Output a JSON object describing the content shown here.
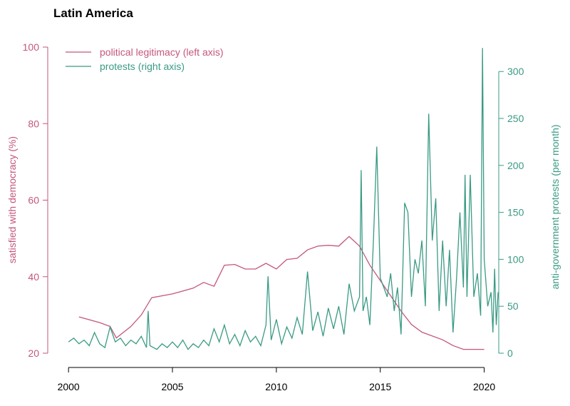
{
  "chart_data": {
    "type": "line",
    "title": "Latin America",
    "y_label": "satisfied with democracy (%)",
    "y2_label": "anti-government protests (per month)",
    "xlim": [
      1999,
      2020.7
    ],
    "xticks": [
      2000,
      2005,
      2010,
      2015,
      2020
    ],
    "ylim": [
      20,
      100
    ],
    "yticks": [
      20,
      40,
      60,
      80,
      100
    ],
    "y2lim": [
      0,
      326
    ],
    "y2ticks": [
      0,
      50,
      100,
      150,
      200,
      250,
      300
    ],
    "legend": "top-left",
    "series": [
      {
        "name": "political legitimacy (left axis)",
        "color": "#c4577a",
        "x": [
          2000.5,
          2001.5,
          2002,
          2002.3,
          2003,
          2003.5,
          2004,
          2005,
          2006,
          2006.5,
          2007,
          2007.5,
          2008,
          2008.5,
          2009,
          2009.5,
          2010,
          2010.5,
          2011,
          2011.5,
          2012,
          2012.5,
          2013,
          2013.5,
          2014,
          2014.5,
          2015,
          2015.5,
          2016,
          2016.5,
          2017,
          2018,
          2018.5,
          2019,
          2019.5,
          2020
        ],
        "values": [
          29.5,
          28,
          27,
          24,
          27,
          30,
          34.5,
          35.5,
          37,
          38.5,
          37.5,
          43,
          43.2,
          42,
          42,
          43.5,
          42,
          44.5,
          44.8,
          47,
          48,
          48.2,
          48,
          50.5,
          48,
          43,
          39,
          35,
          31,
          27.5,
          25.5,
          23.5,
          22,
          21,
          21,
          21
        ]
      },
      {
        "name": "protests (right axis)",
        "color": "#3a9a84",
        "axis": "y2",
        "x": [
          2000.0,
          2000.25,
          2000.5,
          2000.75,
          2001.0,
          2001.25,
          2001.5,
          2001.75,
          2002.0,
          2002.25,
          2002.5,
          2002.75,
          2003.0,
          2003.25,
          2003.5,
          2003.75,
          2003.83,
          2003.92,
          2004.25,
          2004.5,
          2004.75,
          2005.0,
          2005.25,
          2005.5,
          2005.75,
          2006.0,
          2006.25,
          2006.5,
          2006.75,
          2007.0,
          2007.25,
          2007.5,
          2007.75,
          2008.0,
          2008.25,
          2008.5,
          2008.75,
          2009.0,
          2009.25,
          2009.5,
          2009.6,
          2009.75,
          2010.0,
          2010.25,
          2010.5,
          2010.75,
          2011.0,
          2011.25,
          2011.5,
          2011.75,
          2012.0,
          2012.25,
          2012.5,
          2012.75,
          2013.0,
          2013.25,
          2013.5,
          2013.75,
          2014.0,
          2014.08,
          2014.17,
          2014.33,
          2014.5,
          2014.67,
          2014.83,
          2015.0,
          2015.17,
          2015.33,
          2015.5,
          2015.67,
          2015.83,
          2016.0,
          2016.17,
          2016.33,
          2016.5,
          2016.67,
          2016.83,
          2017.0,
          2017.17,
          2017.33,
          2017.5,
          2017.67,
          2017.83,
          2018.0,
          2018.17,
          2018.33,
          2018.5,
          2018.67,
          2018.83,
          2019.0,
          2019.08,
          2019.17,
          2019.33,
          2019.5,
          2019.67,
          2019.83,
          2019.92,
          2020.0,
          2020.17,
          2020.33,
          2020.42,
          2020.5,
          2020.58,
          2020.67
        ],
        "values": [
          12,
          16,
          10,
          14,
          8,
          22,
          10,
          6,
          28,
          12,
          16,
          8,
          14,
          10,
          18,
          6,
          45,
          8,
          4,
          10,
          6,
          12,
          6,
          14,
          4,
          10,
          6,
          14,
          8,
          26,
          12,
          30,
          10,
          20,
          8,
          24,
          12,
          18,
          8,
          30,
          82,
          14,
          36,
          10,
          28,
          16,
          38,
          20,
          87,
          24,
          44,
          18,
          48,
          26,
          50,
          20,
          74,
          45,
          60,
          195,
          45,
          60,
          30,
          120,
          220,
          80,
          70,
          60,
          85,
          45,
          70,
          20,
          160,
          150,
          60,
          100,
          85,
          120,
          50,
          255,
          120,
          165,
          45,
          120,
          50,
          110,
          22,
          80,
          150,
          70,
          190,
          60,
          190,
          60,
          85,
          40,
          325,
          100,
          50,
          65,
          22,
          90,
          30,
          65
        ]
      }
    ]
  }
}
